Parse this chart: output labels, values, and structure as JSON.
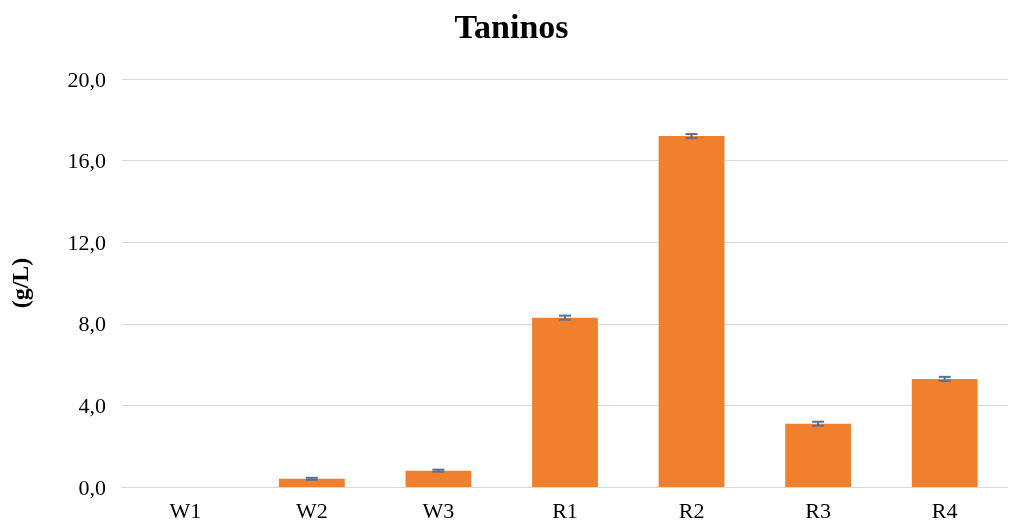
{
  "chart_data": {
    "type": "bar",
    "title": "Taninos",
    "ylabel": "(g/L)",
    "categories": [
      "W1",
      "W2",
      "W3",
      "R1",
      "R2",
      "R3",
      "R4"
    ],
    "values": [
      0,
      0.4,
      0.8,
      8.3,
      17.2,
      3.1,
      5.3
    ],
    "errors": [
      null,
      0.05,
      0.05,
      0.1,
      0.1,
      0.1,
      0.1
    ],
    "color": "#f07f2e",
    "ylim": [
      0,
      20
    ],
    "yticks": [
      {
        "value": 0,
        "label": "0,0"
      },
      {
        "value": 4,
        "label": "4,0"
      },
      {
        "value": 8,
        "label": "8,0"
      },
      {
        "value": 12,
        "label": "12,0"
      },
      {
        "value": 16,
        "label": "16,0"
      },
      {
        "value": 20,
        "label": "20,0"
      }
    ],
    "grid": "y"
  }
}
